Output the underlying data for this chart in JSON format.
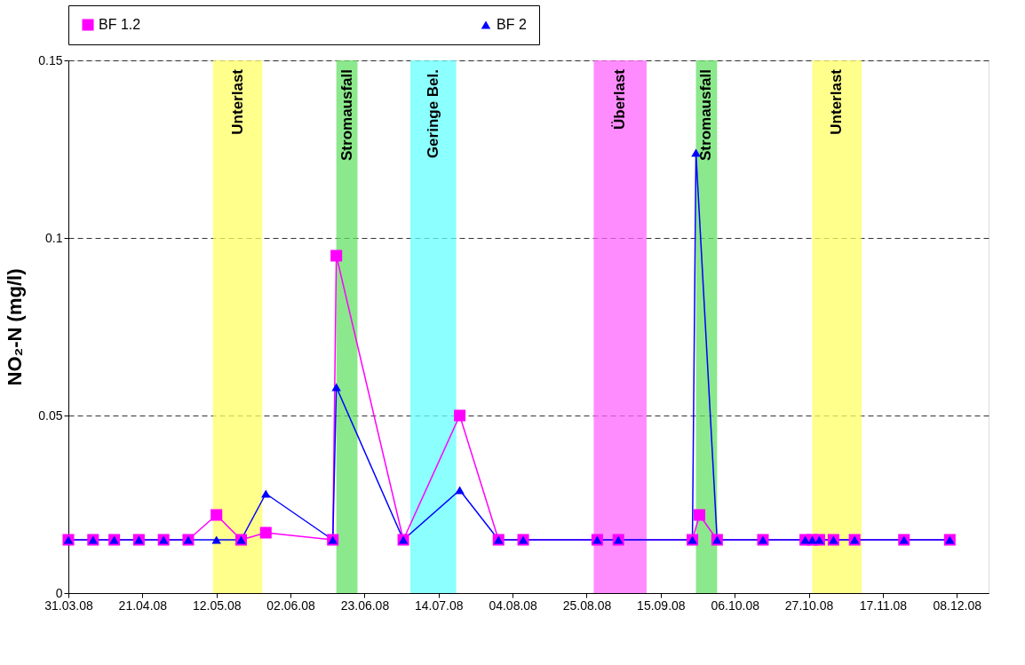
{
  "chart_data": {
    "type": "line",
    "ylabel": "NO₂-N (mg/l)",
    "xlim": [
      "2008-03-31",
      "2008-12-17"
    ],
    "xticks": [
      {
        "value": "2008-03-31",
        "label": "31.03.08"
      },
      {
        "value": "2008-04-21",
        "label": "21.04.08"
      },
      {
        "value": "2008-05-12",
        "label": "12.05.08"
      },
      {
        "value": "2008-06-02",
        "label": "02.06.08"
      },
      {
        "value": "2008-06-23",
        "label": "23.06.08"
      },
      {
        "value": "2008-07-14",
        "label": "14.07.08"
      },
      {
        "value": "2008-08-04",
        "label": "04.08.08"
      },
      {
        "value": "2008-08-25",
        "label": "25.08.08"
      },
      {
        "value": "2008-09-15",
        "label": "15.09.08"
      },
      {
        "value": "2008-10-06",
        "label": "06.10.08"
      },
      {
        "value": "2008-10-27",
        "label": "27.10.08"
      },
      {
        "value": "2008-11-17",
        "label": "17.11.08"
      },
      {
        "value": "2008-12-08",
        "label": "08.12.08"
      }
    ],
    "ylim": [
      0,
      0.15
    ],
    "yticks": [
      0,
      0.05,
      0.1,
      0.15
    ],
    "grid": "y",
    "legend": "top",
    "line_style": "solid",
    "series": [
      {
        "name": "BF 1.2",
        "color": "#ff00ff",
        "marker": "square",
        "x": [
          "2008-03-31",
          "2008-04-07",
          "2008-04-13",
          "2008-04-20",
          "2008-04-27",
          "2008-05-04",
          "2008-05-12",
          "2008-05-19",
          "2008-05-26",
          "2008-06-14",
          "2008-06-15",
          "2008-07-04",
          "2008-07-20",
          "2008-07-31",
          "2008-08-07",
          "2008-08-28",
          "2008-09-03",
          "2008-09-24",
          "2008-09-26",
          "2008-10-01",
          "2008-10-14",
          "2008-10-26",
          "2008-10-28",
          "2008-10-30",
          "2008-11-03",
          "2008-11-09",
          "2008-11-23",
          "2008-12-06"
        ],
        "values": [
          0.015,
          0.015,
          0.015,
          0.015,
          0.015,
          0.015,
          0.022,
          0.015,
          0.017,
          0.015,
          0.095,
          0.015,
          0.05,
          0.015,
          0.015,
          0.015,
          0.015,
          0.015,
          0.022,
          0.015,
          0.015,
          0.015,
          0.015,
          0.015,
          0.015,
          0.015,
          0.015,
          0.015
        ]
      },
      {
        "name": "BF 2",
        "color": "#0000ff",
        "marker": "triangle",
        "x": [
          "2008-03-31",
          "2008-04-07",
          "2008-04-13",
          "2008-04-20",
          "2008-04-27",
          "2008-05-04",
          "2008-05-12",
          "2008-05-19",
          "2008-05-26",
          "2008-06-14",
          "2008-06-15",
          "2008-07-04",
          "2008-07-20",
          "2008-07-31",
          "2008-08-07",
          "2008-08-28",
          "2008-09-03",
          "2008-09-24",
          "2008-09-25",
          "2008-10-01",
          "2008-10-14",
          "2008-10-26",
          "2008-10-28",
          "2008-10-30",
          "2008-11-03",
          "2008-11-09",
          "2008-11-23",
          "2008-12-06"
        ],
        "values": [
          0.015,
          0.015,
          0.015,
          0.015,
          0.015,
          0.015,
          0.015,
          0.015,
          0.028,
          0.015,
          0.058,
          0.015,
          0.029,
          0.015,
          0.015,
          0.015,
          0.015,
          0.015,
          0.124,
          0.015,
          0.015,
          0.015,
          0.015,
          0.015,
          0.015,
          0.015,
          0.015,
          0.015
        ]
      }
    ],
    "bands": [
      {
        "axis": "x",
        "from": "2008-05-11",
        "to": "2008-05-25",
        "label": "Unterlast",
        "color": "#ffff66"
      },
      {
        "axis": "x",
        "from": "2008-06-15",
        "to": "2008-06-21",
        "label": "Stromausfall",
        "color": "#66e066"
      },
      {
        "axis": "x",
        "from": "2008-07-06",
        "to": "2008-07-19",
        "label": "Geringe Bel.",
        "color": "#66ffff"
      },
      {
        "axis": "x",
        "from": "2008-08-27",
        "to": "2008-09-11",
        "label": "Überlast",
        "color": "#ff66ff"
      },
      {
        "axis": "x",
        "from": "2008-09-25",
        "to": "2008-10-01",
        "label": "Stromausfall",
        "color": "#66e066"
      },
      {
        "axis": "x",
        "from": "2008-10-28",
        "to": "2008-11-11",
        "label": "Unterlast",
        "color": "#ffff66"
      }
    ]
  }
}
